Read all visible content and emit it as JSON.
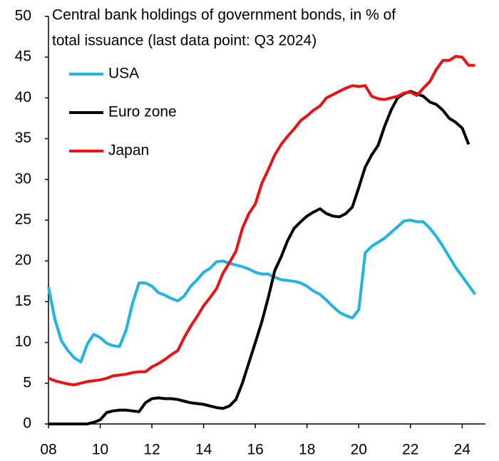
{
  "chart_data": {
    "type": "line",
    "title_lines": [
      "Central bank holdings of government bonds, in % of",
      "total issuance (last data point: Q3 2024)"
    ],
    "x": [
      2008,
      2008.25,
      2008.5,
      2008.75,
      2009,
      2009.25,
      2009.5,
      2009.75,
      2010,
      2010.25,
      2010.5,
      2010.75,
      2011,
      2011.25,
      2011.5,
      2011.75,
      2012,
      2012.25,
      2012.5,
      2012.75,
      2013,
      2013.25,
      2013.5,
      2013.75,
      2014,
      2014.25,
      2014.5,
      2014.75,
      2015,
      2015.25,
      2015.5,
      2015.75,
      2016,
      2016.25,
      2016.5,
      2016.75,
      2017,
      2017.25,
      2017.5,
      2017.75,
      2018,
      2018.25,
      2018.5,
      2018.75,
      2019,
      2019.25,
      2019.5,
      2019.75,
      2020,
      2020.25,
      2020.5,
      2020.75,
      2021,
      2021.25,
      2021.5,
      2021.75,
      2022,
      2022.25,
      2022.5,
      2022.75,
      2023,
      2023.25,
      2023.5,
      2023.75,
      2024,
      2024.25,
      2024.5
    ],
    "series": [
      {
        "name": "USA",
        "color": "#1fb4e6",
        "values": [
          16.8,
          12.8,
          10.2,
          9.0,
          8.1,
          7.6,
          9.8,
          11.0,
          10.6,
          9.9,
          9.6,
          9.5,
          11.5,
          14.8,
          17.3,
          17.3,
          16.9,
          16.1,
          15.8,
          15.4,
          15.1,
          15.7,
          16.9,
          17.7,
          18.6,
          19.1,
          19.9,
          20.0,
          19.7,
          19.5,
          19.3,
          19.0,
          18.6,
          18.4,
          18.4,
          18.0,
          17.7,
          17.6,
          17.5,
          17.3,
          16.9,
          16.3,
          15.9,
          15.2,
          14.4,
          13.7,
          13.3,
          13.0,
          14.0,
          21.0,
          21.8,
          22.3,
          22.8,
          23.5,
          24.2,
          24.9,
          25.0,
          24.8,
          24.8,
          24.0,
          23.0,
          21.8,
          20.5,
          19.2,
          18.1,
          17.0,
          15.9
        ]
      },
      {
        "name": "Euro zone",
        "color": "#000000",
        "values": [
          0,
          0,
          0,
          0,
          0,
          0,
          0,
          0.2,
          0.5,
          1.4,
          1.6,
          1.7,
          1.7,
          1.6,
          1.5,
          2.6,
          3.1,
          3.2,
          3.1,
          3.1,
          3.0,
          2.8,
          2.6,
          2.5,
          2.4,
          2.2,
          2.0,
          1.9,
          2.2,
          3.0,
          5.0,
          7.5,
          10.0,
          12.5,
          15.5,
          18.8,
          20.5,
          22.5,
          24.0,
          24.8,
          25.5,
          26.0,
          26.4,
          25.8,
          25.5,
          25.4,
          25.8,
          26.6,
          29.0,
          31.5,
          33.0,
          34.2,
          36.5,
          38.5,
          40.0,
          40.5,
          40.8,
          40.5,
          40.2,
          39.5,
          39.2,
          38.5,
          37.5,
          37.0,
          36.3,
          34.3,
          null
        ]
      },
      {
        "name": "Japan",
        "color": "#ee1111",
        "values": [
          5.6,
          5.3,
          5.1,
          4.9,
          4.8,
          5.0,
          5.2,
          5.3,
          5.4,
          5.6,
          5.9,
          6.0,
          6.1,
          6.3,
          6.4,
          6.4,
          7.0,
          7.4,
          7.9,
          8.5,
          9.0,
          10.6,
          12.0,
          13.2,
          14.5,
          15.5,
          16.6,
          18.5,
          19.8,
          21.2,
          24.0,
          25.8,
          27.0,
          29.5,
          31.2,
          33.0,
          34.3,
          35.3,
          36.2,
          37.2,
          37.8,
          38.5,
          39.0,
          40.0,
          40.4,
          40.8,
          41.2,
          41.5,
          41.4,
          41.5,
          40.2,
          39.9,
          39.8,
          40.0,
          40.2,
          40.6,
          40.7,
          40.3,
          41.2,
          42.0,
          43.5,
          44.6,
          44.6,
          45.1,
          45.0,
          44.0,
          44.0
        ]
      }
    ],
    "xlim": [
      2008,
      2024.9
    ],
    "xticks": [
      {
        "value": 2008,
        "label": "08"
      },
      {
        "value": 2010,
        "label": "10"
      },
      {
        "value": 2012,
        "label": "12"
      },
      {
        "value": 2014,
        "label": "14"
      },
      {
        "value": 2016,
        "label": "16"
      },
      {
        "value": 2018,
        "label": "18"
      },
      {
        "value": 2020,
        "label": "20"
      },
      {
        "value": 2022,
        "label": "22"
      },
      {
        "value": 2024,
        "label": "24"
      }
    ],
    "ylim": [
      0,
      50
    ],
    "yticks": [
      0,
      5,
      10,
      15,
      20,
      25,
      30,
      35,
      40,
      45,
      50
    ]
  }
}
